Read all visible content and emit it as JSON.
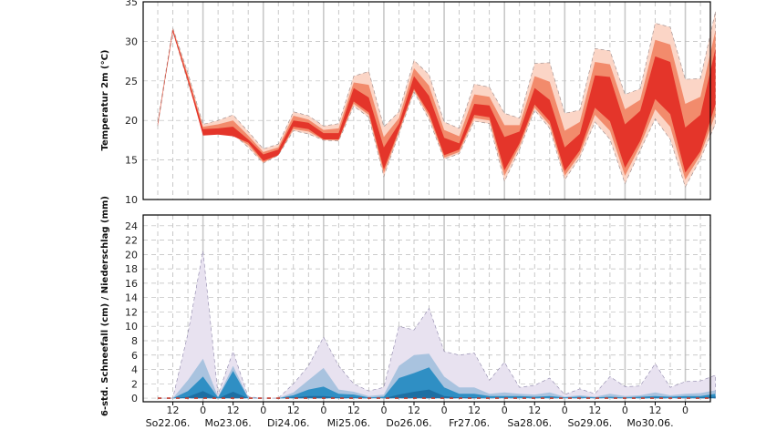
{
  "chart_data": [
    {
      "type": "area",
      "ylabel": "Temperatur 2m (°C)",
      "ylim": [
        10,
        35
      ],
      "yticks": [
        10,
        15,
        20,
        25,
        30,
        35
      ],
      "x_hours": [
        0,
        6,
        12,
        18,
        24,
        30,
        36,
        42,
        48,
        54,
        60,
        66,
        72,
        78,
        84,
        90,
        96,
        102,
        108,
        114,
        120,
        126,
        132,
        138,
        144,
        150,
        156,
        162,
        168,
        174,
        180,
        186,
        192,
        198,
        204,
        210,
        216,
        222
      ],
      "bands": {
        "p05": [
          19.3,
          31.3,
          24.8,
          18.8,
          18.6,
          18.3,
          16.6,
          14.6,
          15.6,
          18.7,
          18.3,
          17.5,
          17.4,
          21.8,
          20.4,
          12.9,
          18.3,
          23.6,
          20.1,
          15.1,
          15.8,
          19.9,
          19.6,
          12.3,
          16.3,
          21.3,
          19.0,
          12.5,
          15.3,
          19.8,
          17.6,
          12.0,
          16.2,
          20.2,
          17.6,
          11.6,
          15.1,
          19.6
        ],
        "p25": [
          19.4,
          31.2,
          25.0,
          18.1,
          18.2,
          18.0,
          17.2,
          14.9,
          15.6,
          19.2,
          18.9,
          17.6,
          17.6,
          22.4,
          21.0,
          13.8,
          18.8,
          24.0,
          20.9,
          15.6,
          16.3,
          20.7,
          20.4,
          13.7,
          17.1,
          22.0,
          19.9,
          13.6,
          16.2,
          21.6,
          19.9,
          14.0,
          17.4,
          22.7,
          20.8,
          13.4,
          16.1,
          22.0
        ],
        "p75": [
          19.6,
          31.5,
          25.4,
          18.9,
          19.0,
          19.2,
          17.6,
          15.7,
          16.3,
          20.0,
          19.7,
          18.4,
          18.4,
          24.1,
          22.9,
          16.6,
          19.6,
          25.6,
          23.1,
          17.8,
          17.1,
          22.1,
          21.9,
          17.9,
          18.6,
          24.1,
          22.6,
          16.6,
          18.3,
          25.7,
          25.5,
          19.5,
          21.2,
          28.1,
          27.4,
          19.1,
          20.7,
          29.1
        ],
        "p95": [
          19.8,
          31.7,
          26.0,
          19.5,
          20.0,
          20.7,
          18.6,
          16.4,
          17.0,
          21.1,
          20.6,
          19.3,
          19.6,
          25.6,
          26.2,
          19.2,
          21.1,
          27.6,
          25.8,
          19.8,
          19.0,
          24.6,
          24.2,
          20.9,
          20.3,
          27.2,
          27.3,
          20.9,
          21.3,
          29.1,
          28.8,
          23.3,
          24.0,
          32.3,
          31.8,
          25.2,
          25.3,
          33.8
        ]
      },
      "bands_inner": {
        "p10": [
          19.35,
          31.25,
          24.9,
          18.4,
          18.4,
          18.1,
          16.9,
          14.7,
          15.6,
          18.9,
          18.6,
          17.55,
          17.5,
          22.1,
          20.7,
          13.3,
          18.5,
          23.8,
          20.5,
          15.3,
          16.0,
          20.3,
          20.0,
          13.0,
          16.7,
          21.6,
          19.4,
          13.0,
          15.7,
          20.7,
          18.7,
          13.0,
          16.8,
          21.4,
          19.2,
          12.5,
          15.6,
          20.8
        ],
        "p90": [
          19.7,
          31.6,
          25.7,
          19.2,
          19.5,
          20.0,
          18.1,
          16.0,
          16.6,
          20.6,
          20.1,
          18.8,
          19.0,
          24.8,
          24.5,
          17.9,
          20.3,
          26.6,
          24.4,
          18.8,
          18.0,
          23.3,
          23.0,
          19.4,
          19.4,
          25.6,
          24.9,
          18.7,
          19.8,
          27.4,
          27.1,
          21.4,
          22.6,
          30.2,
          29.6,
          22.1,
          23.0,
          31.4
        ]
      }
    },
    {
      "type": "area",
      "ylabel": "6-std. Schneefall (cm) / Niederschlag (mm)",
      "ylim": [
        0,
        25
      ],
      "yticks": [
        0,
        2,
        4,
        6,
        8,
        10,
        12,
        14,
        16,
        18,
        20,
        22,
        24
      ],
      "x_hours": [
        0,
        6,
        12,
        18,
        24,
        30,
        36,
        42,
        48,
        54,
        60,
        66,
        72,
        78,
        84,
        90,
        96,
        102,
        108,
        114,
        120,
        126,
        132,
        138,
        144,
        150,
        156,
        162,
        168,
        174,
        180,
        186,
        192,
        198,
        204,
        210,
        216,
        222
      ],
      "bands": {
        "p95": [
          0,
          0,
          9,
          20.5,
          0.5,
          6.5,
          0.2,
          0,
          0,
          2,
          4.5,
          8.5,
          4.5,
          2,
          1,
          1.5,
          10,
          9.5,
          12.5,
          6.5,
          6,
          6.3,
          2.5,
          5,
          1.5,
          1.8,
          2.8,
          0.5,
          1.3,
          0.6,
          3,
          1.6,
          1.7,
          4.8,
          1.5,
          2.3,
          2.4,
          3.2
        ],
        "p75": [
          0,
          0,
          2.5,
          5.5,
          0.2,
          4.5,
          0.1,
          0,
          0,
          0.8,
          2.5,
          4.2,
          1.2,
          0.9,
          0.3,
          0.5,
          4.5,
          6,
          6.2,
          3,
          1.5,
          1.5,
          0.6,
          0.8,
          0.6,
          0.5,
          0.8,
          0.2,
          0.4,
          0.2,
          0.6,
          0.3,
          0.4,
          0.8,
          0.4,
          0.6,
          0.7,
          1.1
        ],
        "p50": [
          0,
          0,
          1,
          3,
          0.1,
          3.8,
          0.05,
          0,
          0,
          0.4,
          1.2,
          1.6,
          0.6,
          0.5,
          0.1,
          0.2,
          2.8,
          3.5,
          4.3,
          1.5,
          0.6,
          0.6,
          0.3,
          0.3,
          0.3,
          0.2,
          0.3,
          0.1,
          0.2,
          0.1,
          0.2,
          0.1,
          0.2,
          0.3,
          0.2,
          0.3,
          0.3,
          0.6
        ],
        "p25": [
          0,
          0,
          0.2,
          1,
          0,
          0.9,
          0,
          0,
          0,
          0.1,
          0.3,
          0.3,
          0.1,
          0.1,
          0,
          0,
          0.5,
          0.9,
          1.2,
          0.3,
          0.1,
          0.1,
          0,
          0,
          0,
          0,
          0,
          0,
          0,
          0,
          0,
          0,
          0,
          0.1,
          0,
          0,
          0.1,
          0.2
        ],
        "snow": [
          0,
          0,
          0,
          0,
          0,
          0,
          0,
          0,
          0,
          0,
          0,
          0,
          0,
          0,
          0,
          0,
          0,
          0,
          0,
          0,
          0,
          0,
          0,
          0,
          0,
          0,
          0,
          0,
          0,
          0,
          0,
          0,
          0,
          0,
          0,
          0,
          0,
          0
        ]
      }
    }
  ],
  "xaxis": {
    "hour_labels": [
      {
        "h": 6,
        "t": "12"
      },
      {
        "h": 18,
        "t": "0"
      },
      {
        "h": 30,
        "t": "12"
      },
      {
        "h": 42,
        "t": "0"
      },
      {
        "h": 54,
        "t": "12"
      },
      {
        "h": 66,
        "t": "0"
      },
      {
        "h": 78,
        "t": "12"
      },
      {
        "h": 90,
        "t": "0"
      },
      {
        "h": 102,
        "t": "12"
      },
      {
        "h": 114,
        "t": "0"
      },
      {
        "h": 126,
        "t": "12"
      },
      {
        "h": 138,
        "t": "0"
      },
      {
        "h": 150,
        "t": "12"
      },
      {
        "h": 162,
        "t": "0"
      },
      {
        "h": 174,
        "t": "12"
      },
      {
        "h": 186,
        "t": "0"
      },
      {
        "h": 198,
        "t": "12"
      },
      {
        "h": 210,
        "t": "0"
      }
    ],
    "day_labels": [
      "So22.06.",
      "Mo23.06.",
      "Di24.06.",
      "Mi25.06.",
      "Do26.06.",
      "Fr27.06.",
      "Sa28.06.",
      "So29.06.",
      "Mo30.06."
    ]
  },
  "colors": {
    "temp_outer": "#fbd5c6",
    "temp_mid": "#f28b6c",
    "temp_inner": "#e4352a",
    "precip_outer": "#e8e2f0",
    "precip_mid": "#a9c3df",
    "precip_inner": "#2f8fc4",
    "grid_day": "#c8c8c8",
    "grid_dash": "#bbbbbb",
    "axis": "#000000"
  }
}
